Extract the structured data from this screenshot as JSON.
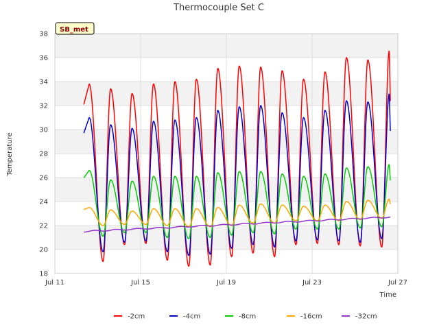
{
  "chart_data": {
    "type": "line",
    "title": "Thermocouple Set C",
    "xlabel": "Time",
    "ylabel": "Temperature",
    "site_label": "SB_met",
    "x_ticks": [
      "Jul 11",
      "Jul 15",
      "Jul 19",
      "Jul 23",
      "Jul 27"
    ],
    "xlim_days": [
      11,
      27
    ],
    "ylim": [
      18,
      38
    ],
    "y_ticks": [
      18,
      20,
      22,
      24,
      26,
      28,
      30,
      32,
      34,
      36,
      38
    ],
    "grid": true,
    "legend_position": "bottom",
    "series": [
      {
        "name": "-2cm",
        "color": "#ff0000",
        "peaks": [
          33.8,
          33.4,
          33.0,
          33.8,
          34.0,
          34.2,
          35.1,
          35.3,
          35.2,
          34.9,
          34.2,
          34.8,
          36.0,
          35.8,
          36.6
        ],
        "troughs": [
          19.0,
          20.4,
          20.5,
          19.1,
          18.6,
          18.7,
          19.4,
          19.7,
          19.4,
          20.4,
          20.5,
          20.4,
          20.3,
          20.2
        ]
      },
      {
        "name": "-4cm",
        "color": "#0000cc",
        "peaks": [
          31.0,
          30.4,
          30.1,
          30.7,
          30.8,
          31.0,
          31.6,
          31.9,
          32.0,
          31.4,
          31.0,
          31.6,
          32.4,
          32.3,
          33.0
        ],
        "troughs": [
          19.8,
          20.6,
          20.7,
          19.8,
          19.5,
          19.6,
          20.1,
          20.4,
          20.2,
          20.7,
          20.8,
          20.7,
          20.6,
          20.9
        ]
      },
      {
        "name": "-8cm",
        "color": "#00cc00",
        "peaks": [
          26.6,
          25.8,
          25.7,
          26.1,
          26.1,
          26.1,
          26.4,
          26.5,
          26.5,
          26.3,
          26.1,
          26.3,
          26.8,
          26.9,
          27.1
        ],
        "troughs": [
          21.1,
          21.4,
          21.4,
          21.0,
          20.9,
          21.0,
          21.2,
          21.4,
          21.3,
          21.7,
          21.7,
          21.7,
          21.8,
          21.9
        ]
      },
      {
        "name": "-16cm",
        "color": "#ffa500",
        "peaks": [
          23.5,
          23.3,
          23.2,
          23.4,
          23.4,
          23.4,
          23.5,
          23.7,
          23.8,
          23.7,
          23.6,
          23.7,
          24.0,
          24.1,
          24.2
        ],
        "troughs": [
          22.0,
          22.1,
          22.1,
          22.0,
          21.9,
          21.9,
          22.0,
          22.2,
          22.2,
          22.4,
          22.4,
          22.4,
          22.5,
          22.6
        ]
      },
      {
        "name": "-32cm",
        "color": "#9933cc",
        "start": 21.5,
        "end": 22.7
      }
    ]
  }
}
